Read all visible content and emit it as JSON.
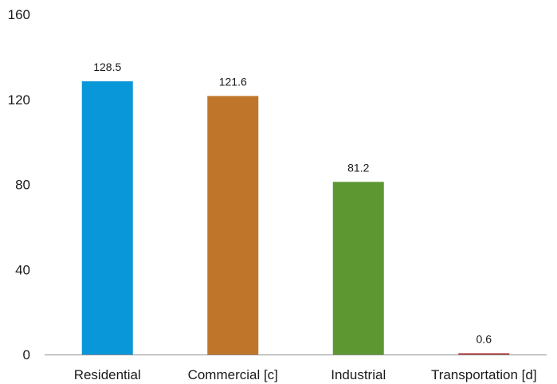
{
  "chart_data": {
    "type": "bar",
    "title": "",
    "xlabel": "",
    "ylabel": "",
    "categories": [
      "Residential",
      "Commercial [c]",
      "Industrial",
      "Transportation [d]"
    ],
    "values": [
      128.5,
      121.6,
      81.2,
      0.6
    ],
    "data_labels": [
      "128.5",
      "121.6",
      "81.2",
      "0.6"
    ],
    "colors": [
      "#0a97d9",
      "#c0762a",
      "#5d9732",
      "#b23a3a"
    ],
    "ylim": [
      0,
      160
    ],
    "yticks": [
      0,
      40,
      80,
      120,
      160
    ],
    "ytick_labels": [
      "0",
      "40",
      "80",
      "120",
      "160"
    ],
    "grid": false,
    "legend": "none"
  }
}
